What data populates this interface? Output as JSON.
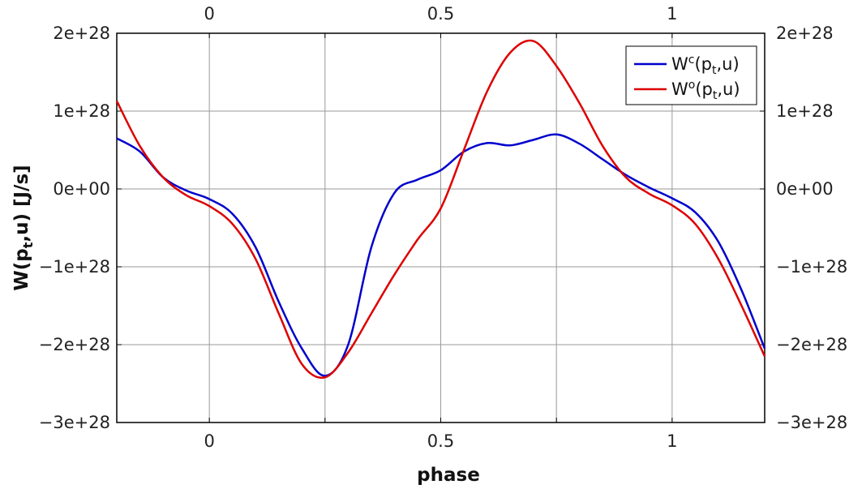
{
  "chart_data": {
    "type": "line",
    "xlabel": "phase",
    "ylabel": "W(p_t,u) [J/s]",
    "xlim": [
      -0.2,
      1.2
    ],
    "ylim": [
      -3e+28,
      2e+28
    ],
    "x_ticks": [
      0,
      0.5,
      1
    ],
    "x_tick_labels": [
      "0",
      "0.5",
      "1"
    ],
    "y_ticks": [
      -3e+28,
      -2e+28,
      -1e+28,
      0,
      1e+28,
      2e+28
    ],
    "y_tick_labels": [
      "−3e+28",
      "−2e+28",
      "−1e+28",
      "0e+00",
      "1e+28",
      "2e+28"
    ],
    "grid": true,
    "legend_position": "top-right",
    "series": [
      {
        "name": "Wc(pt,u)",
        "color": "#0000cc",
        "x": [
          -0.2,
          -0.15,
          -0.1,
          -0.05,
          0,
          0.05,
          0.1,
          0.15,
          0.2,
          0.25,
          0.3,
          0.35,
          0.4,
          0.45,
          0.5,
          0.55,
          0.6,
          0.65,
          0.7,
          0.75,
          0.8,
          0.85,
          0.9,
          0.95,
          1.0,
          1.05,
          1.1,
          1.15,
          1.2
        ],
        "values": [
          6.5e+27,
          4.8e+27,
          1.5e+27,
          -2e+26,
          -1.3e+27,
          -3.2e+27,
          -7.5e+27,
          -1.45e+28,
          -2.05e+28,
          -2.4e+28,
          -2e+28,
          -7.5e+27,
          -5e+26,
          1.2e+27,
          2.4e+27,
          4.8e+27,
          5.9e+27,
          5.6e+27,
          6.3e+27,
          7e+27,
          5.8e+27,
          3.8e+27,
          1.8e+27,
          2e+26,
          -1.2e+27,
          -3e+27,
          -6.8e+27,
          -1.3e+28,
          -2.05e+28
        ]
      },
      {
        "name": "Wo(pt,u)",
        "color": "#dd0000",
        "x": [
          -0.2,
          -0.15,
          -0.1,
          -0.05,
          0,
          0.05,
          0.1,
          0.15,
          0.2,
          0.25,
          0.3,
          0.35,
          0.4,
          0.45,
          0.5,
          0.55,
          0.6,
          0.65,
          0.7,
          0.75,
          0.8,
          0.85,
          0.9,
          0.95,
          1.0,
          1.05,
          1.1,
          1.15,
          1.2
        ],
        "values": [
          1.13e+28,
          5.5e+27,
          1.5e+27,
          -8e+26,
          -2.2e+27,
          -4.5e+27,
          -9e+27,
          -1.6e+28,
          -2.25e+28,
          -2.42e+28,
          -2.1e+28,
          -1.6e+28,
          -1.1e+28,
          -6.5e+27,
          -2.5e+27,
          5e+27,
          1.25e+28,
          1.75e+28,
          1.9e+28,
          1.58e+28,
          1.1e+28,
          5.5e+27,
          1.5e+27,
          -6e+26,
          -2.1e+27,
          -4.5e+27,
          -9e+27,
          -1.5e+28,
          -2.15e+28
        ]
      }
    ]
  },
  "legend": {
    "items": [
      {
        "main": "W",
        "sup": "c",
        "open": "(p",
        "sub": "t",
        "close": ",u)"
      },
      {
        "main": "W",
        "sup": "o",
        "open": "(p",
        "sub": "t",
        "close": ",u)"
      }
    ]
  },
  "ylabel_parts": {
    "main": "W(p",
    "sub": "t",
    "rest": ",u) [J/s]"
  }
}
